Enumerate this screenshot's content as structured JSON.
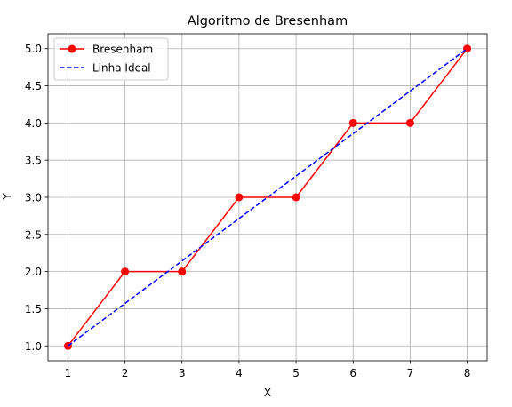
{
  "chart_data": {
    "type": "line",
    "title": "Algoritmo de Bresenham",
    "xlabel": "X",
    "ylabel": "Y",
    "xlim": [
      0.65,
      8.35
    ],
    "ylim": [
      0.8,
      5.2
    ],
    "xticks": [
      1,
      2,
      3,
      4,
      5,
      6,
      7,
      8
    ],
    "yticks": [
      1.0,
      1.5,
      2.0,
      2.5,
      3.0,
      3.5,
      4.0,
      4.5,
      5.0
    ],
    "xtick_labels": [
      "1",
      "2",
      "3",
      "4",
      "5",
      "6",
      "7",
      "8"
    ],
    "ytick_labels": [
      "1.0",
      "1.5",
      "2.0",
      "2.5",
      "3.0",
      "3.5",
      "4.0",
      "4.5",
      "5.0"
    ],
    "grid": true,
    "legend_position": "top-left",
    "series": [
      {
        "name": "Bresenham",
        "color": "#ff0000",
        "line_style": "solid",
        "marker": "circle",
        "x": [
          1,
          2,
          3,
          4,
          5,
          6,
          7,
          8
        ],
        "y": [
          1,
          2,
          2,
          3,
          3,
          4,
          4,
          5
        ]
      },
      {
        "name": "Linha Ideal",
        "color": "#0000ff",
        "line_style": "dashed",
        "marker": "none",
        "x": [
          1,
          8
        ],
        "y": [
          1,
          5
        ]
      }
    ]
  }
}
